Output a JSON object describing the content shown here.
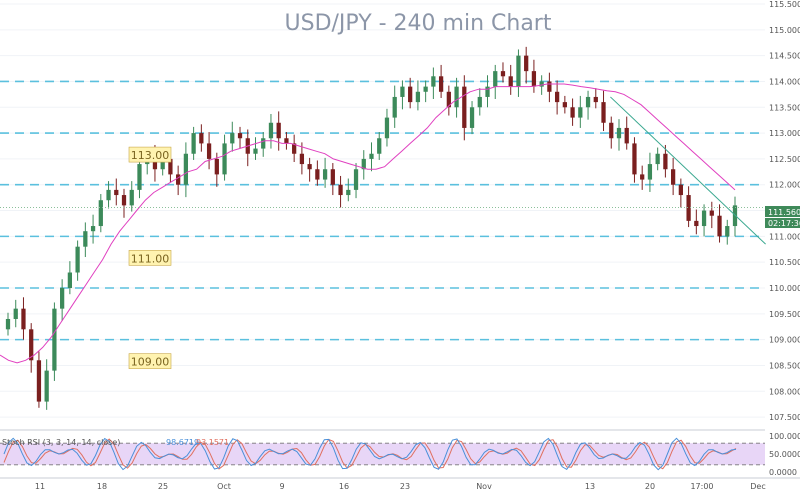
{
  "chart_data": {
    "type": "candlestick",
    "title": "USD/JPY - 240 min Chart",
    "ylim": [
      107.25,
      115.5
    ],
    "y_ticks": [
      "115.500",
      "115.000",
      "114.500",
      "114.000",
      "113.500",
      "113.000",
      "112.500",
      "112.000",
      "111.500",
      "111.000",
      "110.500",
      "110.000",
      "109.500",
      "109.000",
      "108.500",
      "108.000",
      "107.500"
    ],
    "x_ticks": [
      "11",
      "18",
      "25",
      "Oct",
      "9",
      "16",
      "23",
      "Nov",
      "13",
      "20",
      "17:00",
      "Dec"
    ],
    "last_price": "111.560",
    "countdown": "02:17:36",
    "level_labels": [
      "113.00",
      "111.00",
      "109.00"
    ],
    "levels": [
      114.0,
      113.0,
      112.0,
      111.0,
      110.0,
      109.0
    ],
    "closes": [
      109.4,
      109.6,
      109.2,
      108.6,
      107.8,
      108.4,
      109.6,
      110.0,
      110.3,
      110.8,
      111.1,
      111.2,
      111.7,
      111.9,
      111.8,
      111.6,
      111.9,
      112.4,
      112.6,
      112.3,
      112.5,
      112.2,
      112.0,
      112.6,
      113.0,
      112.8,
      112.5,
      112.2,
      112.8,
      113.0,
      112.9,
      112.6,
      112.7,
      112.9,
      113.2,
      112.9,
      112.8,
      112.6,
      112.4,
      112.3,
      112.1,
      112.3,
      112.0,
      111.8,
      111.9,
      112.3,
      112.5,
      112.6,
      112.9,
      113.3,
      113.7,
      113.9,
      113.6,
      113.8,
      113.9,
      114.1,
      113.8,
      113.5,
      113.9,
      113.1,
      113.5,
      113.7,
      113.9,
      114.2,
      114.1,
      113.9,
      114.5,
      114.2,
      113.9,
      114.0,
      113.8,
      113.6,
      113.5,
      113.3,
      113.5,
      113.7,
      113.6,
      113.2,
      112.9,
      113.1,
      112.8,
      112.2,
      112.1,
      112.4,
      112.6,
      112.3,
      112.0,
      111.8,
      111.3,
      111.2,
      111.5,
      111.4,
      111.0,
      111.2,
      111.6
    ],
    "sma": [
      108.7,
      108.6,
      108.55,
      108.6,
      108.7,
      108.85,
      109.05,
      109.3,
      109.55,
      109.8,
      110.05,
      110.3,
      110.55,
      110.85,
      111.1,
      111.3,
      111.5,
      111.7,
      111.85,
      111.95,
      112.05,
      112.15,
      112.25,
      112.3,
      112.45,
      112.5,
      112.55,
      112.65,
      112.7,
      112.75,
      112.8,
      112.85,
      112.85,
      112.8,
      112.8,
      112.75,
      112.7,
      112.65,
      112.6,
      112.5,
      112.45,
      112.4,
      112.35,
      112.3,
      112.3,
      112.35,
      112.5,
      112.65,
      112.8,
      112.95,
      113.1,
      113.3,
      113.45,
      113.6,
      113.7,
      113.8,
      113.85,
      113.85,
      113.9,
      113.9,
      113.9,
      113.9,
      113.9,
      113.92,
      113.95,
      113.95,
      113.95,
      113.93,
      113.9,
      113.88,
      113.85,
      113.82,
      113.8,
      113.75,
      113.65,
      113.55,
      113.4,
      113.25,
      113.1,
      112.95,
      112.8,
      112.65,
      112.5,
      112.35,
      112.2,
      112.05,
      111.9
    ],
    "trendline": {
      "from": [
        0.763,
        113.7
      ],
      "to": [
        0.957,
        110.85
      ]
    },
    "oscillator": {
      "label": "Stoch RSI (3, 3, 14, 14, close)",
      "value_k": "98.6719",
      "value_d": "93.1571",
      "ylim": [
        0,
        100
      ],
      "ticks": [
        "100.0000",
        "50.0000",
        "0.0000"
      ],
      "bands": [
        80,
        20
      ]
    }
  },
  "colors": {
    "background": "#ffffff",
    "grid": "#f0f3f7",
    "bull": "#3c8a5a",
    "bear": "#7a1f1f",
    "sma": "#e040c0",
    "trend": "#3aa890",
    "level": "#5bc0de",
    "label_bg": "#fff3b0",
    "price_bg": "#3f8a5a",
    "osc_band": "#e8d6f7",
    "k_line": "#4a90d9",
    "d_line": "#e07060",
    "axis_text": "#555555",
    "title": "#8c96a8"
  }
}
